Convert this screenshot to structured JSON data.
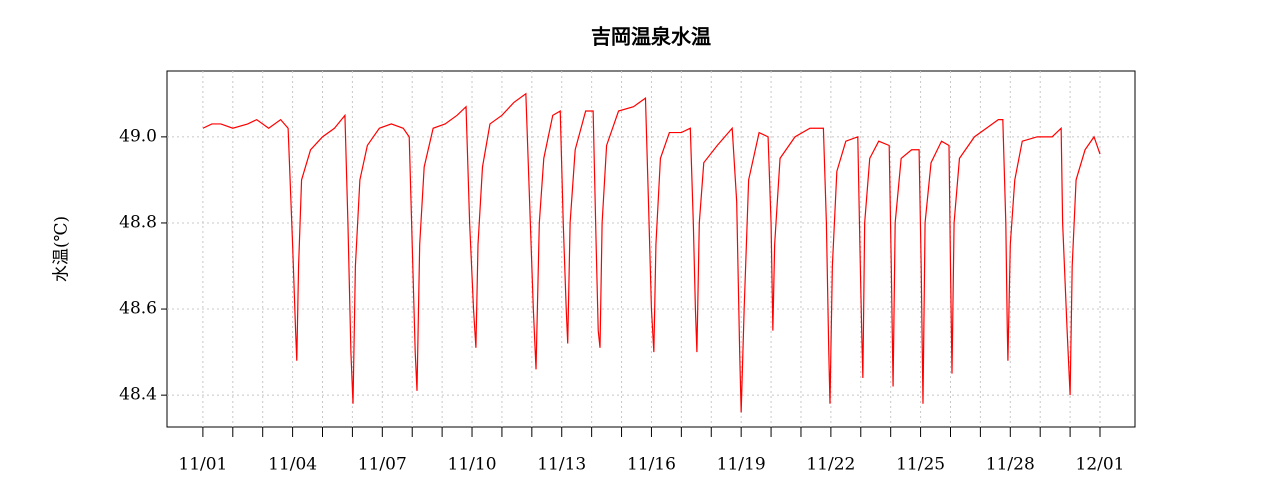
{
  "chart_data": {
    "type": "line",
    "title": "吉岡温泉水温",
    "y_label": "水温(℃)",
    "color": "#ff0000",
    "grid": true,
    "xlim": [
      -1.2,
      31.17
    ],
    "ylim": [
      48.326,
      49.153
    ],
    "xticks": [
      {
        "value": 0,
        "label": "11/01"
      },
      {
        "value": 3,
        "label": "11/04"
      },
      {
        "value": 6,
        "label": "11/07"
      },
      {
        "value": 9,
        "label": "11/10"
      },
      {
        "value": 12,
        "label": "11/13"
      },
      {
        "value": 15,
        "label": "11/16"
      },
      {
        "value": 18,
        "label": "11/19"
      },
      {
        "value": 21,
        "label": "11/22"
      },
      {
        "value": 24,
        "label": "11/25"
      },
      {
        "value": 27,
        "label": "11/28"
      },
      {
        "value": 30,
        "label": "12/01"
      }
    ],
    "xminorticks": [
      1,
      2,
      4,
      5,
      7,
      8,
      10,
      11,
      13,
      14,
      16,
      17,
      19,
      20,
      22,
      23,
      25,
      26,
      28,
      29
    ],
    "yticks": [
      {
        "value": 48.4,
        "label": "48.4"
      },
      {
        "value": 48.6,
        "label": "48.6"
      },
      {
        "value": 48.8,
        "label": "48.8"
      },
      {
        "value": 49.0,
        "label": "49.0"
      }
    ],
    "x": [
      0,
      0.3,
      0.6,
      1,
      1.5,
      1.8,
      2.2,
      2.6,
      2.85,
      3.0,
      3.1,
      3.14,
      3.2,
      3.3,
      3.6,
      4.0,
      4.4,
      4.75,
      4.85,
      4.95,
      5.02,
      5.1,
      5.25,
      5.5,
      5.9,
      6.3,
      6.7,
      6.9,
      7.0,
      7.1,
      7.16,
      7.25,
      7.4,
      7.7,
      8.1,
      8.5,
      8.8,
      8.92,
      9.05,
      9.13,
      9.2,
      9.35,
      9.6,
      10.0,
      10.4,
      10.8,
      10.9,
      11.05,
      11.14,
      11.25,
      11.4,
      11.7,
      11.95,
      12.05,
      12.15,
      12.2,
      12.28,
      12.45,
      12.8,
      13.05,
      13.15,
      13.22,
      13.28,
      13.35,
      13.5,
      13.9,
      14.4,
      14.8,
      14.9,
      15.0,
      15.08,
      15.15,
      15.3,
      15.6,
      16.0,
      16.3,
      16.4,
      16.47,
      16.52,
      16.6,
      16.75,
      17.2,
      17.7,
      17.85,
      17.95,
      18.0,
      18.1,
      18.25,
      18.6,
      18.9,
      19.0,
      19.06,
      19.12,
      19.3,
      19.8,
      20.3,
      20.75,
      20.85,
      20.93,
      20.97,
      21.05,
      21.2,
      21.5,
      21.9,
      21.97,
      22.03,
      22.07,
      22.13,
      22.3,
      22.6,
      22.95,
      23.02,
      23.08,
      23.15,
      23.35,
      23.7,
      23.95,
      24.02,
      24.08,
      24.15,
      24.35,
      24.7,
      24.95,
      25.0,
      25.05,
      25.12,
      25.3,
      25.8,
      26.2,
      26.6,
      26.75,
      26.85,
      26.9,
      26.92,
      27.0,
      27.15,
      27.4,
      27.9,
      28.4,
      28.7,
      28.75,
      28.9,
      29.0,
      29.07,
      29.2,
      29.5,
      29.8,
      30.0
    ],
    "values": [
      49.02,
      49.03,
      49.03,
      49.02,
      49.03,
      49.04,
      49.02,
      49.04,
      49.02,
      48.75,
      48.55,
      48.48,
      48.7,
      48.9,
      48.97,
      49.0,
      49.02,
      49.05,
      48.8,
      48.5,
      48.38,
      48.7,
      48.9,
      48.98,
      49.02,
      49.03,
      49.02,
      49.0,
      48.75,
      48.5,
      48.41,
      48.75,
      48.93,
      49.02,
      49.03,
      49.05,
      49.07,
      48.8,
      48.6,
      48.51,
      48.75,
      48.93,
      49.03,
      49.05,
      49.08,
      49.1,
      48.9,
      48.6,
      48.46,
      48.8,
      48.95,
      49.05,
      49.06,
      48.8,
      48.6,
      48.52,
      48.8,
      48.97,
      49.06,
      49.06,
      48.75,
      48.55,
      48.51,
      48.8,
      48.98,
      49.06,
      49.07,
      49.09,
      48.85,
      48.6,
      48.5,
      48.75,
      48.95,
      49.01,
      49.01,
      49.02,
      48.8,
      48.6,
      48.5,
      48.8,
      48.94,
      48.98,
      49.02,
      48.85,
      48.5,
      48.36,
      48.6,
      48.9,
      49.01,
      49.0,
      48.8,
      48.55,
      48.75,
      48.95,
      49.0,
      49.02,
      49.02,
      48.8,
      48.5,
      48.38,
      48.7,
      48.92,
      48.99,
      49.0,
      48.75,
      48.55,
      48.44,
      48.8,
      48.95,
      48.99,
      48.98,
      48.7,
      48.42,
      48.8,
      48.95,
      48.97,
      48.97,
      48.7,
      48.38,
      48.8,
      48.94,
      48.99,
      48.98,
      48.7,
      48.45,
      48.8,
      48.95,
      49.0,
      49.02,
      49.04,
      49.04,
      48.8,
      48.55,
      48.48,
      48.75,
      48.9,
      48.99,
      49.0,
      49.0,
      49.02,
      48.8,
      48.55,
      48.4,
      48.7,
      48.9,
      48.97,
      49.0,
      48.96
    ]
  }
}
